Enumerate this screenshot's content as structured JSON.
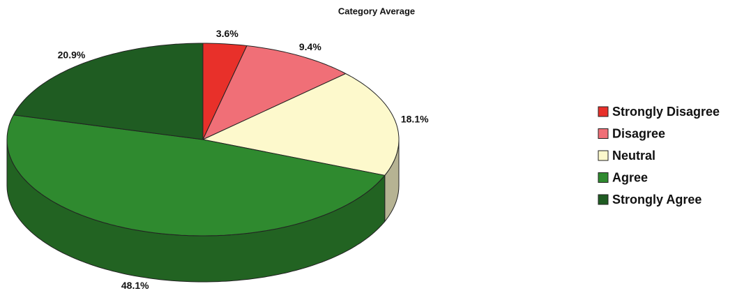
{
  "chart_data": {
    "type": "pie",
    "title": "Category Average",
    "categories": [
      "Strongly Disagree",
      "Disagree",
      "Neutral",
      "Agree",
      "Strongly Agree"
    ],
    "values": [
      3.6,
      9.4,
      18.1,
      48.1,
      20.9
    ],
    "value_labels": [
      "3.6%",
      "9.4%",
      "18.1%",
      "48.1%",
      "20.9%"
    ],
    "colors": [
      "#e8302a",
      "#f06f77",
      "#fdf9cc",
      "#2f8a2f",
      "#1f5c22"
    ],
    "legend": "right"
  }
}
